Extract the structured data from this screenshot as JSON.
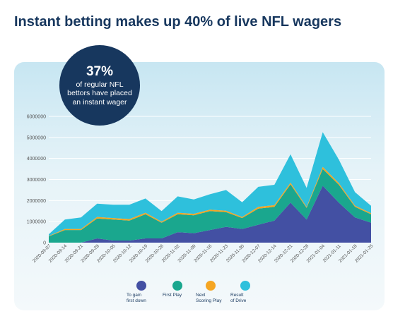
{
  "headline": "Instant betting makes up 40% of live NFL wagers",
  "callout": {
    "stat": "37%",
    "text": "of regular NFL bettors have placed an instant wager"
  },
  "chart_data": {
    "type": "area",
    "stacked": true,
    "x": [
      "2020-09-07",
      "2020-09-14",
      "2020-09-21",
      "2020-09-28",
      "2020-10-05",
      "2020-10-12",
      "2020-10-19",
      "2020-10-26",
      "2020-11-02",
      "2020-11-09",
      "2020-11-16",
      "2020-11-23",
      "2020-11-30",
      "2020-12-07",
      "2020-12-14",
      "2020-12-21",
      "2020-12-28",
      "2021-01-04",
      "2021-01-11",
      "2021-01-18",
      "2021-01-25"
    ],
    "ylim": [
      0,
      6000000
    ],
    "yticks": [
      "0",
      "1000000",
      "2000000",
      "3000000",
      "4000000",
      "5000000",
      "6000000"
    ],
    "grid": true,
    "legend_position": "bottom",
    "series": [
      {
        "name": "To gain\nfirst down",
        "color": "#4350a3",
        "values": [
          0,
          0,
          0,
          200000,
          100000,
          100000,
          200000,
          200000,
          500000,
          450000,
          600000,
          750000,
          650000,
          850000,
          1050000,
          1900000,
          1100000,
          2700000,
          1900000,
          1200000,
          950000
        ]
      },
      {
        "name": "First Play",
        "color": "#1aa78e",
        "values": [
          300000,
          600000,
          600000,
          950000,
          1000000,
          950000,
          1150000,
          750000,
          850000,
          850000,
          900000,
          700000,
          520000,
          770000,
          650000,
          870000,
          550000,
          800000,
          850000,
          500000,
          400000
        ]
      },
      {
        "name": "Next\nScoring Play",
        "color": "#f5a623",
        "values": [
          20000,
          50000,
          50000,
          70000,
          70000,
          70000,
          70000,
          50000,
          70000,
          70000,
          70000,
          70000,
          50000,
          80000,
          80000,
          80000,
          50000,
          100000,
          80000,
          60000,
          50000
        ]
      },
      {
        "name": "Result\nof Drive",
        "color": "#2ec0dc",
        "values": [
          80000,
          450000,
          550000,
          630000,
          630000,
          680000,
          680000,
          500000,
          780000,
          680000,
          730000,
          980000,
          700000,
          950000,
          970000,
          1350000,
          900000,
          1650000,
          1120000,
          640000,
          350000
        ]
      }
    ]
  }
}
